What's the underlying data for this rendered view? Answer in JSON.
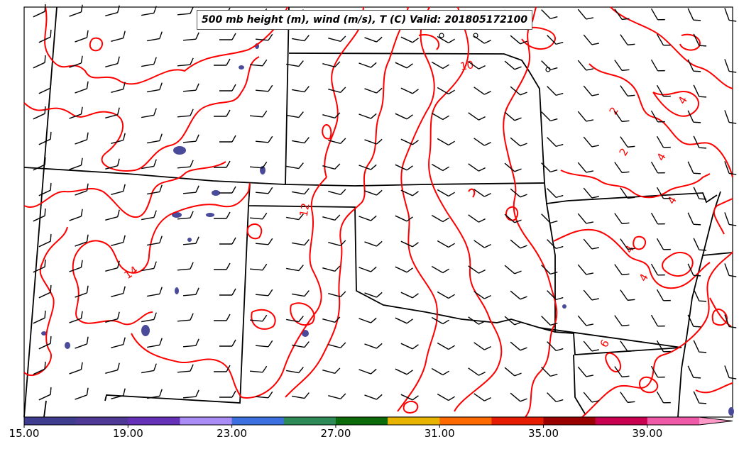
{
  "title": "500 mb height (m), wind (m/s), T (C) Valid: 201805172100",
  "contour_labels": [
    "14",
    "12",
    "10",
    "8",
    "6",
    "4",
    "4",
    "4",
    "4",
    "2",
    "2",
    "4"
  ],
  "colorbar": {
    "ticks": [
      "15.00",
      "19.00",
      "23.00",
      "27.00",
      "31.00",
      "35.00",
      "39.00"
    ],
    "colors": [
      "#3f3d8f",
      "#4e3a96",
      "#6531b8",
      "#a98cf5",
      "#3c6fe0",
      "#2e8b57",
      "#0b6b0b",
      "#e8b400",
      "#ff6a00",
      "#e51c00",
      "#9a0000",
      "#c8004f",
      "#ef5aa8",
      "#ff9ac8"
    ]
  },
  "colors": {
    "contour": "#ff0000",
    "boundary": "#000000",
    "shading": "#4a4a9a"
  }
}
